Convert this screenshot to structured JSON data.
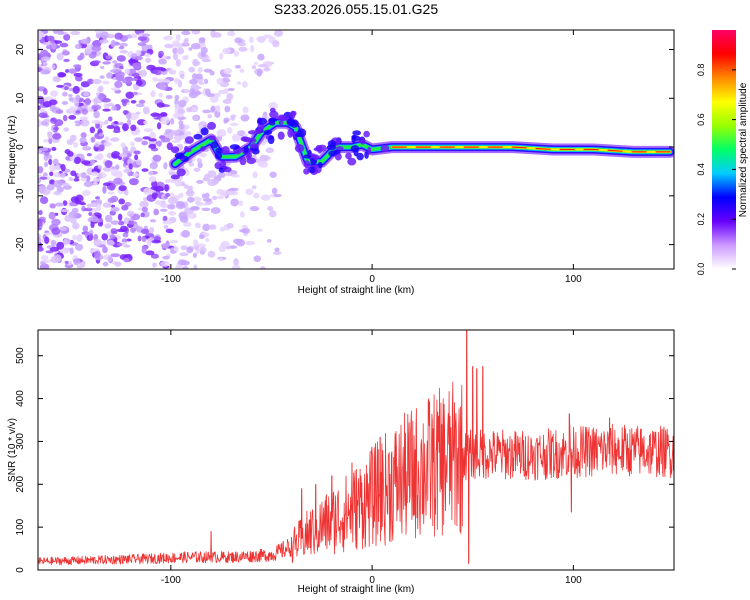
{
  "title": "S233.2026.055.15.01.G25",
  "chart_data": [
    {
      "type": "heatmap",
      "xlabel": "Height of straight line (km)",
      "ylabel": "Frequency (Hz)",
      "xlim": [
        -166,
        150
      ],
      "ylim": [
        -25,
        24
      ],
      "xticks": [
        -100,
        0,
        100
      ],
      "yticks": [
        -20,
        -10,
        0,
        10,
        20
      ],
      "colorbar": {
        "label": "Normalized spectral amplitude",
        "range": [
          0,
          0.96
        ],
        "ticks": [
          "0.0",
          "0.2",
          "0.4",
          "0.6",
          "0.8"
        ],
        "colors": [
          "#ffffff",
          "#cc99ff",
          "#6600ff",
          "#0000ff",
          "#00ccff",
          "#00ff66",
          "#99ff00",
          "#ffff00",
          "#ff8800",
          "#ff0000",
          "#ff0066"
        ]
      },
      "ridge": [
        {
          "x": -98,
          "y": -3.5
        },
        {
          "x": -90,
          "y": -1
        },
        {
          "x": -80,
          "y": 1.5
        },
        {
          "x": -75,
          "y": -2
        },
        {
          "x": -68,
          "y": -2
        },
        {
          "x": -60,
          "y": 0
        },
        {
          "x": -55,
          "y": 3
        },
        {
          "x": -48,
          "y": 5
        },
        {
          "x": -42,
          "y": 5
        },
        {
          "x": -38,
          "y": 4
        },
        {
          "x": -32,
          "y": -3
        },
        {
          "x": -25,
          "y": -3
        },
        {
          "x": -18,
          "y": 0
        },
        {
          "x": -10,
          "y": 0
        },
        {
          "x": -5,
          "y": 0.5
        },
        {
          "x": 0,
          "y": -0.5
        },
        {
          "x": 10,
          "y": 0
        },
        {
          "x": 30,
          "y": 0
        },
        {
          "x": 50,
          "y": 0
        },
        {
          "x": 70,
          "y": 0
        },
        {
          "x": 90,
          "y": -0.5
        },
        {
          "x": 110,
          "y": -0.5
        },
        {
          "x": 130,
          "y": -1
        },
        {
          "x": 148,
          "y": -1
        }
      ]
    },
    {
      "type": "line",
      "xlabel": "Height of straight line (km)",
      "ylabel": "SNR (10 * v/v)",
      "xlim": [
        -166,
        150
      ],
      "ylim": [
        0,
        560
      ],
      "xticks": [
        -100,
        0,
        100
      ],
      "yticks": [
        0,
        100,
        200,
        300,
        400,
        500
      ],
      "color": "#ee3333",
      "trend": [
        {
          "x": -166,
          "y": 20
        },
        {
          "x": -120,
          "y": 25
        },
        {
          "x": -90,
          "y": 30
        },
        {
          "x": -70,
          "y": 30
        },
        {
          "x": -50,
          "y": 35
        },
        {
          "x": -40,
          "y": 55
        },
        {
          "x": -30,
          "y": 90
        },
        {
          "x": -20,
          "y": 115
        },
        {
          "x": -10,
          "y": 140
        },
        {
          "x": 0,
          "y": 170
        },
        {
          "x": 10,
          "y": 200
        },
        {
          "x": 20,
          "y": 225
        },
        {
          "x": 30,
          "y": 245
        },
        {
          "x": 40,
          "y": 260
        },
        {
          "x": 50,
          "y": 270
        },
        {
          "x": 60,
          "y": 270
        },
        {
          "x": 80,
          "y": 268
        },
        {
          "x": 100,
          "y": 275
        },
        {
          "x": 120,
          "y": 280
        },
        {
          "x": 150,
          "y": 275
        }
      ],
      "spikes": [
        {
          "x": -80,
          "y": 90
        },
        {
          "x": -35,
          "y": 190
        },
        {
          "x": -28,
          "y": 200
        },
        {
          "x": -20,
          "y": 220
        },
        {
          "x": -10,
          "y": 250
        },
        {
          "x": 4,
          "y": 310
        },
        {
          "x": 12,
          "y": 290
        },
        {
          "x": 47,
          "y": 560
        },
        {
          "x": 48,
          "y": 15
        },
        {
          "x": 50,
          "y": 475
        },
        {
          "x": 52,
          "y": 470
        },
        {
          "x": 55,
          "y": 475
        },
        {
          "x": 98,
          "y": 365
        },
        {
          "x": 99,
          "y": 135
        },
        {
          "x": 118,
          "y": 355
        }
      ]
    }
  ]
}
